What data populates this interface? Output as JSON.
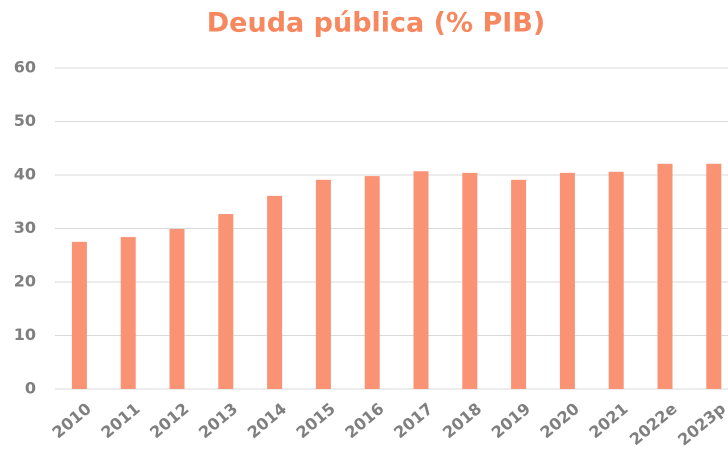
{
  "chart_data": {
    "type": "bar",
    "title": "Deuda pública (% PIB)",
    "categories": [
      "2010",
      "2011",
      "2012",
      "2013",
      "2014",
      "2015",
      "2016",
      "2017",
      "2018",
      "2019",
      "2020",
      "2021",
      "2022e",
      "2023p"
    ],
    "values": [
      27.5,
      28.4,
      29.9,
      32.7,
      36.1,
      39.1,
      39.8,
      40.7,
      40.4,
      39.1,
      40.4,
      40.6,
      42.1,
      42.1
    ],
    "color": "#fa9274",
    "ylim": [
      0,
      60
    ],
    "yticks": [
      0,
      10,
      20,
      30,
      40,
      50,
      60
    ],
    "grid": true
  }
}
